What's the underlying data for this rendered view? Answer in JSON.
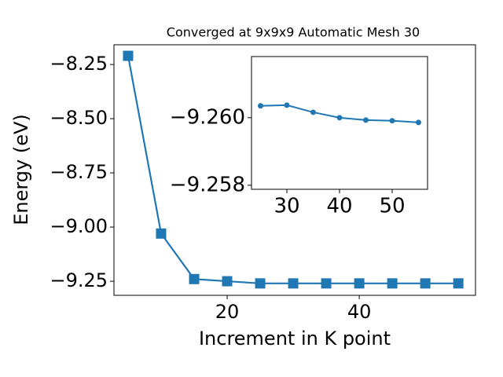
{
  "chart_data": [
    {
      "type": "line",
      "title": "Converged at 9x9x9 Automatic Mesh 30",
      "x_label": "Increment in K point",
      "y_label": "Energy (eV)",
      "x": [
        5,
        10,
        15,
        20,
        25,
        30,
        35,
        40,
        45,
        50,
        55
      ],
      "series": [
        {
          "color": "#1f77b4",
          "marker": "square",
          "values": [
            -8.21,
            -9.03,
            -9.24,
            -9.25,
            -9.26,
            -9.26,
            -9.26,
            -9.26,
            -9.26,
            -9.26,
            -9.26
          ]
        }
      ],
      "xlim": [
        2.86,
        57.6
      ],
      "ylim": [
        -9.315,
        -8.159
      ],
      "xticks": [
        20,
        40
      ],
      "yticks": [
        {
          "value": -9.25,
          "label": "−9.25"
        },
        {
          "value": -9.0,
          "label": "−9.00"
        },
        {
          "value": -8.75,
          "label": "−8.75"
        },
        {
          "value": -8.5,
          "label": "−8.50"
        },
        {
          "value": -8.25,
          "label": "−8.25"
        }
      ]
    },
    {
      "type": "line",
      "x": [
        25,
        30,
        35,
        40,
        45,
        50,
        55
      ],
      "series": [
        {
          "color": "#1f77b4",
          "marker": "circle",
          "values": [
            -9.26035,
            -9.26037,
            -9.26016,
            -9.26,
            -9.25993,
            -9.25991,
            -9.25986
          ]
        }
      ],
      "xlim": [
        23.28,
        56.72
      ],
      "ylim": [
        -9.25788,
        -9.26181
      ],
      "xticks": [
        30,
        40,
        50
      ],
      "yticks": [
        {
          "value": -9.258,
          "label": "−9.258"
        },
        {
          "value": -9.26,
          "label": "−9.260"
        }
      ]
    }
  ]
}
